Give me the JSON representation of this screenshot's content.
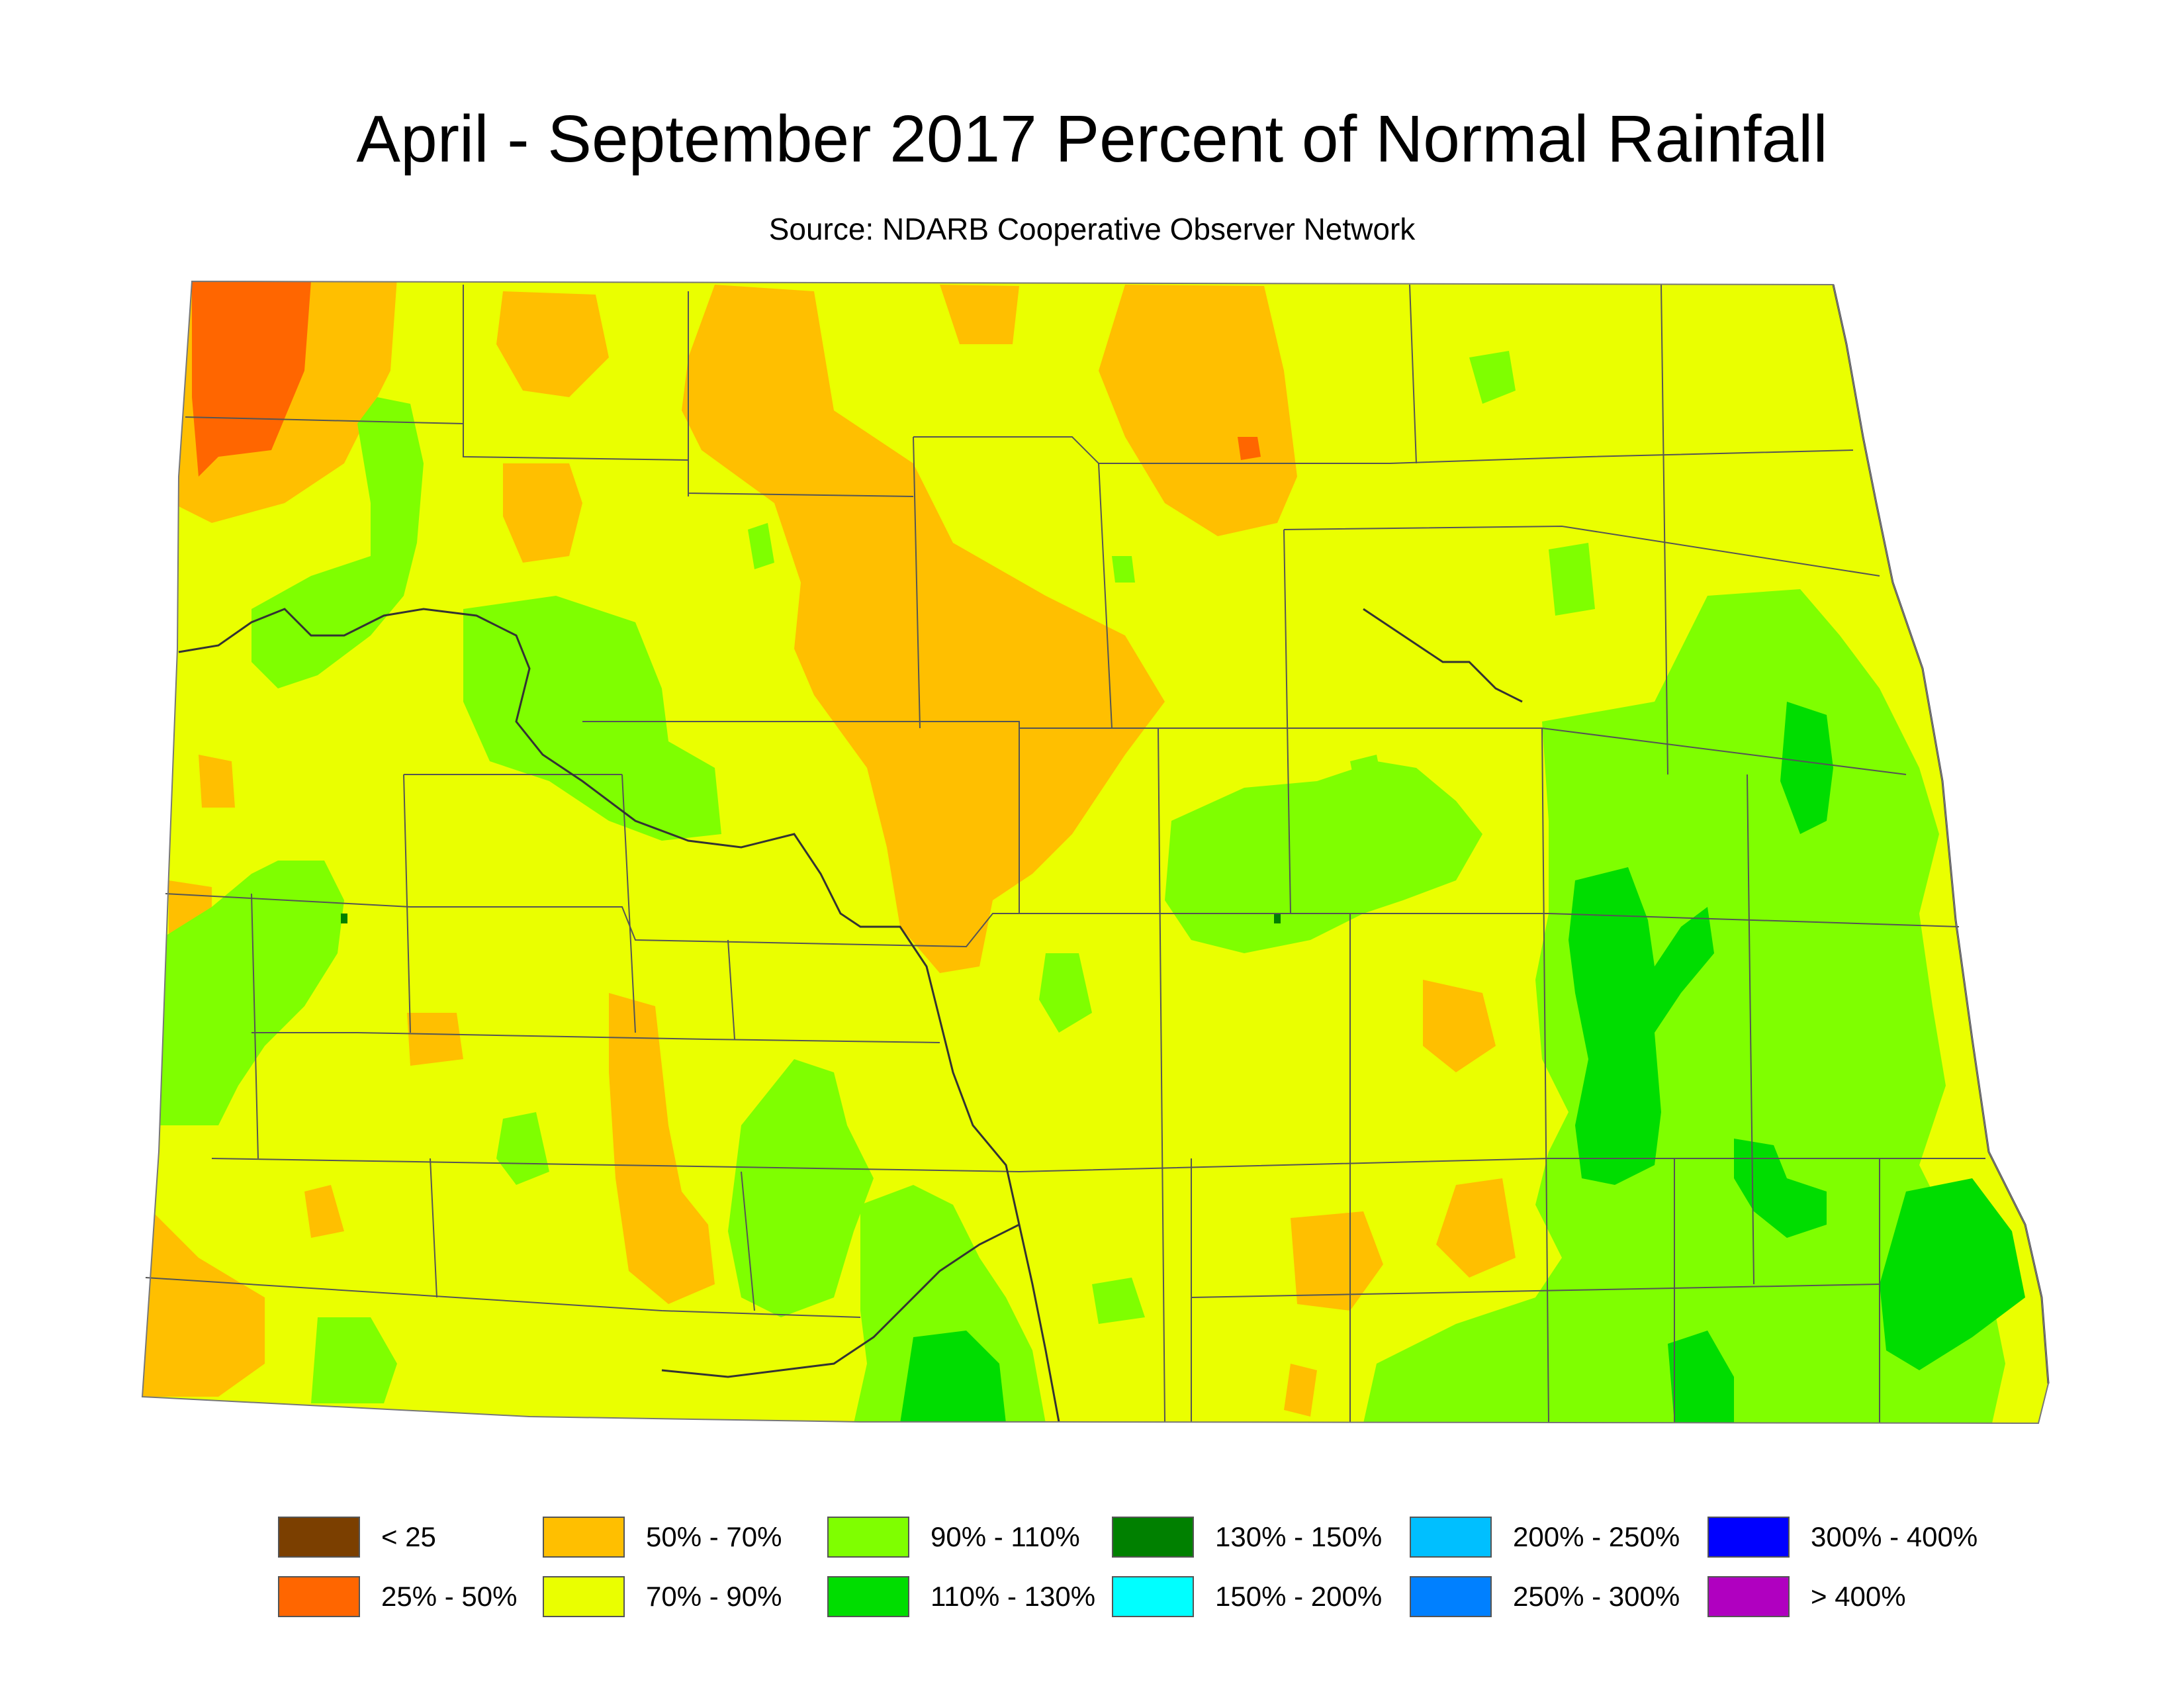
{
  "title": "April - September 2017 Percent of Normal Rainfall",
  "subtitle": "Source: NDARB Cooperative Observer Network",
  "colors": {
    "background": "#ffffff",
    "county_line": "#555555",
    "river": "#333333",
    "bin_lt25": "#7b3f00",
    "bin_25_50": "#ff6600",
    "bin_50_70": "#ffbf00",
    "bin_70_90": "#eaff00",
    "bin_90_110": "#7fff00",
    "bin_110_130": "#00dd00",
    "bin_130_150": "#008000",
    "bin_150_200": "#00ffff",
    "bin_200_250": "#00bfff",
    "bin_250_300": "#0080ff",
    "bin_300_400": "#0000ff",
    "bin_gt400": "#b000c0"
  },
  "legend": [
    {
      "label": "< 25",
      "color": "#7b3f00"
    },
    {
      "label": "25% - 50%",
      "color": "#ff6600"
    },
    {
      "label": "50% - 70%",
      "color": "#ffbf00"
    },
    {
      "label": "70% - 90%",
      "color": "#eaff00"
    },
    {
      "label": "90% - 110%",
      "color": "#7fff00"
    },
    {
      "label": "110% - 130%",
      "color": "#00dd00"
    },
    {
      "label": "130% - 150%",
      "color": "#008000"
    },
    {
      "label": "150% - 200%",
      "color": "#00ffff"
    },
    {
      "label": "200% - 250%",
      "color": "#00bfff"
    },
    {
      "label": "250% - 300%",
      "color": "#0080ff"
    },
    {
      "label": "300% - 400%",
      "color": "#0000ff"
    },
    {
      "label": "> 400%",
      "color": "#b000c0"
    }
  ]
}
